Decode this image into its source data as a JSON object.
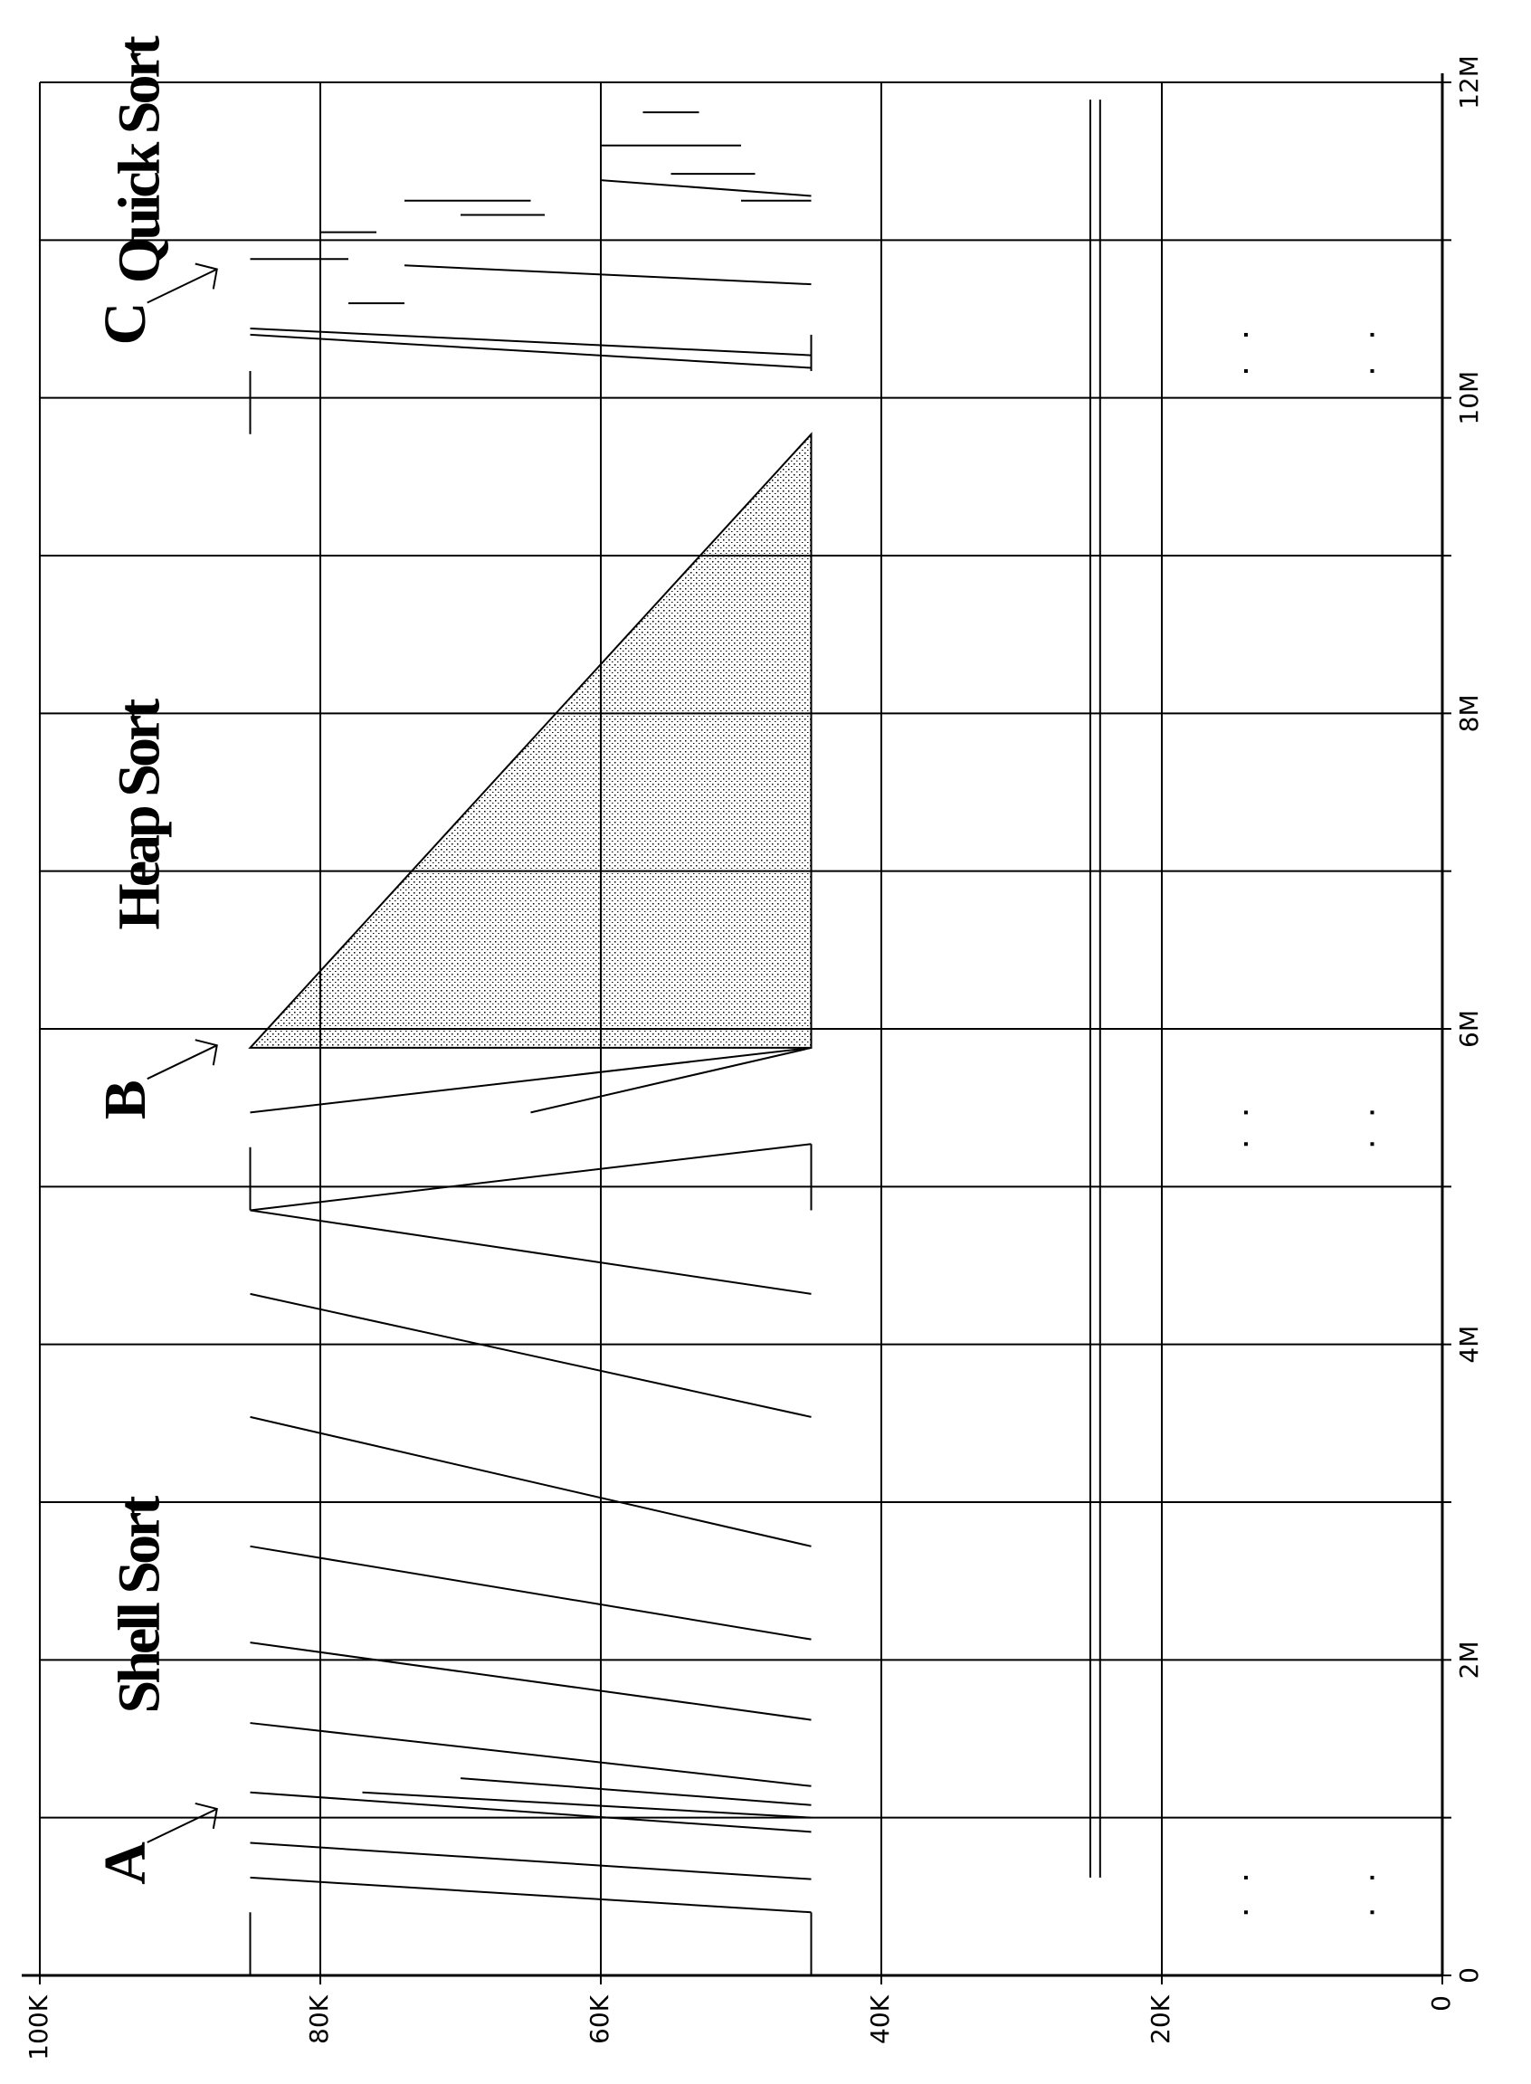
{
  "chart_data": {
    "type": "trace",
    "xlim": [
      0,
      12000000
    ],
    "xticks": [
      {
        "value": 0,
        "label": "0"
      },
      {
        "value": 2000000,
        "label": "2M"
      },
      {
        "value": 4000000,
        "label": "4M"
      },
      {
        "value": 6000000,
        "label": "6M"
      },
      {
        "value": 8000000,
        "label": "8M"
      },
      {
        "value": 10000000,
        "label": "10M"
      },
      {
        "value": 12000000,
        "label": "12M"
      }
    ],
    "xminor": [
      1000000,
      3000000,
      5000000,
      7000000,
      9000000,
      11000000
    ],
    "ylim": [
      0,
      100000
    ],
    "yticks": [
      {
        "value": 0,
        "label": "0"
      },
      {
        "value": 20000,
        "label": "20K"
      },
      {
        "value": 40000,
        "label": "40K"
      },
      {
        "value": 60000,
        "label": "60K"
      },
      {
        "value": 80000,
        "label": "80K"
      },
      {
        "value": 100000,
        "label": "100K"
      }
    ],
    "grid": true,
    "color": "#000000",
    "annotations": [
      {
        "text": "Shell Sort",
        "x": 2340000,
        "y": 92500
      },
      {
        "text": "Heap Sort",
        "x": 7350000,
        "y": 92500
      },
      {
        "text": "Quick Sort",
        "x": 11500000,
        "y": 92500
      },
      {
        "text": "A",
        "x": 700000,
        "y": 93500
      },
      {
        "text": "B",
        "x": 5540000,
        "y": 93500
      },
      {
        "text": "C",
        "x": 10460000,
        "y": 93500
      }
    ],
    "segments": [
      {
        "x": [
          0,
          400000
        ],
        "y": [
          85000,
          85000
        ]
      },
      {
        "x": [
          0,
          400000
        ],
        "y": [
          45000,
          45000
        ]
      },
      {
        "x": [
          620000,
          400000
        ],
        "y": [
          85000,
          45000
        ]
      },
      {
        "x": [
          840000,
          610000
        ],
        "y": [
          85000,
          45000
        ]
      },
      {
        "x": [
          1160000,
          910000
        ],
        "y": [
          85000,
          45000
        ]
      },
      {
        "x": [
          1160000,
          1000000
        ],
        "y": [
          77000,
          45000
        ]
      },
      {
        "x": [
          1250000,
          1080000
        ],
        "y": [
          70000,
          45000
        ]
      },
      {
        "x": [
          1600000,
          1200000
        ],
        "y": [
          85000,
          45000
        ]
      },
      {
        "x": [
          2110000,
          1620000
        ],
        "y": [
          85000,
          45000
        ]
      },
      {
        "x": [
          2720000,
          2130000
        ],
        "y": [
          85000,
          45000
        ]
      },
      {
        "x": [
          3540000,
          2720000
        ],
        "y": [
          85000,
          45000
        ]
      },
      {
        "x": [
          4320000,
          3540000
        ],
        "y": [
          85000,
          45000
        ]
      },
      {
        "x": [
          4850000,
          4320000
        ],
        "y": [
          85000,
          45000
        ]
      },
      {
        "x": [
          4850000,
          5250000
        ],
        "y": [
          85000,
          85000
        ]
      },
      {
        "x": [
          4850000,
          5270000
        ],
        "y": [
          45000,
          45000
        ]
      },
      {
        "x": [
          4850000,
          5270000
        ],
        "y": [
          85000,
          45000
        ]
      },
      {
        "x": [
          5470000,
          5880000
        ],
        "y": [
          85000,
          45000
        ]
      },
      {
        "x": [
          5470000,
          5880000
        ],
        "y": [
          65000,
          45000
        ]
      },
      {
        "x": [
          9770000,
          10170000
        ],
        "y": [
          85000,
          85000
        ]
      },
      {
        "x": [
          10170000,
          10400000
        ],
        "y": [
          45000,
          45000
        ]
      },
      {
        "x": [
          10400000,
          10190000
        ],
        "y": [
          85000,
          45000
        ]
      },
      {
        "x": [
          10440000,
          10270000
        ],
        "y": [
          85000,
          45000
        ]
      },
      {
        "x": [
          10840000,
          10720000
        ],
        "y": [
          74000,
          45000
        ]
      },
      {
        "x": [
          11380000,
          11280000
        ],
        "y": [
          60000,
          45000
        ]
      },
      {
        "x": [
          10880000,
          10880000
        ],
        "y": [
          85000,
          78000
        ]
      },
      {
        "x": [
          11050000,
          11050000
        ],
        "y": [
          80000,
          76000
        ]
      },
      {
        "x": [
          10600000,
          10600000
        ],
        "y": [
          78000,
          74000
        ]
      },
      {
        "x": [
          11250000,
          11250000
        ],
        "y": [
          74000,
          65000
        ]
      },
      {
        "x": [
          11160000,
          11160000
        ],
        "y": [
          70000,
          64000
        ]
      },
      {
        "x": [
          11600000,
          11600000
        ],
        "y": [
          60000,
          50000
        ]
      },
      {
        "x": [
          11420000,
          11420000
        ],
        "y": [
          55000,
          49000
        ]
      },
      {
        "x": [
          11810000,
          11810000
        ],
        "y": [
          57000,
          53000
        ]
      },
      {
        "x": [
          11250000,
          11250000
        ],
        "y": [
          50000,
          45000
        ]
      },
      {
        "x": [
          620000,
          11890000
        ],
        "y": [
          25100,
          25100
        ]
      },
      {
        "x": [
          620000,
          11890000
        ],
        "y": [
          24400,
          24400
        ]
      }
    ],
    "regions": [
      {
        "x": [
          5880000,
          5880000,
          9770000
        ],
        "y": [
          85000,
          45000,
          45000
        ]
      }
    ],
    "points": {
      "x": [
        400000,
        620000,
        400000,
        620000,
        5270000,
        5470000,
        5270000,
        5470000,
        10170000,
        10400000,
        10170000,
        10400000
      ],
      "y": [
        14000,
        14000,
        5000,
        5000,
        14000,
        14000,
        5000,
        5000,
        14000,
        14000,
        5000,
        5000
      ]
    }
  }
}
